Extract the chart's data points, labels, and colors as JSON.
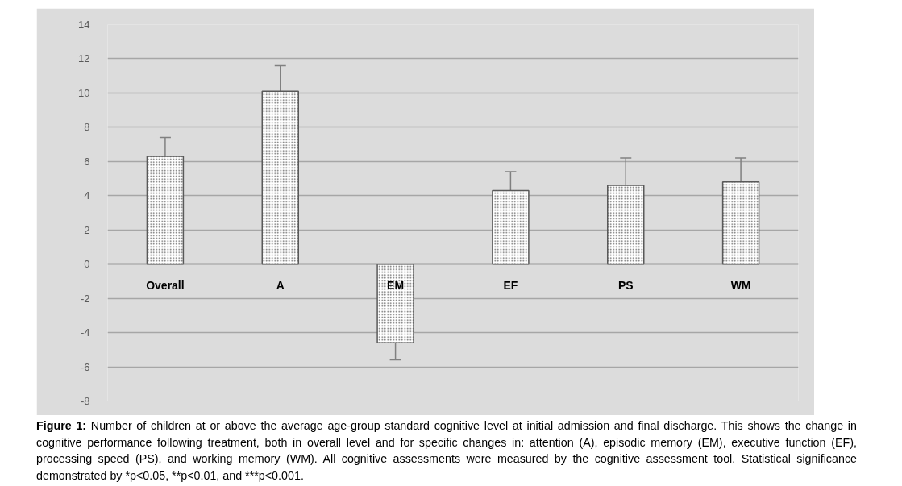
{
  "chart_data": {
    "type": "bar",
    "categories": [
      "Overall",
      "A",
      "EM",
      "EF",
      "PS",
      "WM"
    ],
    "values": [
      6.3,
      10.1,
      -4.6,
      4.3,
      4.6,
      4.8
    ],
    "errors": [
      [
        5.3,
        7.4
      ],
      [
        9.1,
        11.6
      ],
      [
        -5.6,
        -3.1
      ],
      [
        3.3,
        5.4
      ],
      [
        3.6,
        6.2
      ],
      [
        3.8,
        6.2
      ]
    ],
    "color": "#ffffff",
    "ylim": [
      -8,
      14
    ],
    "yticks": [
      -8,
      -6,
      -4,
      -2,
      0,
      2,
      4,
      6,
      8,
      10,
      12,
      14
    ],
    "grid": "y",
    "annotations": [
      "Figure 1: Number of children at or above the average age-group standard cognitive level at initial admission and final discharge. This shows the change in cognitive performance following treatment, both in overall level and for specific changes in: attention (A), episodic memory (EM), executive function (EF), processing speed (PS), and working memory (WM). All cognitive assessments were measured by the cognitive assessment tool. Statistical significance demonstrated by *p<0.05, **p<0.01, and ***p<0.001."
    ]
  }
}
